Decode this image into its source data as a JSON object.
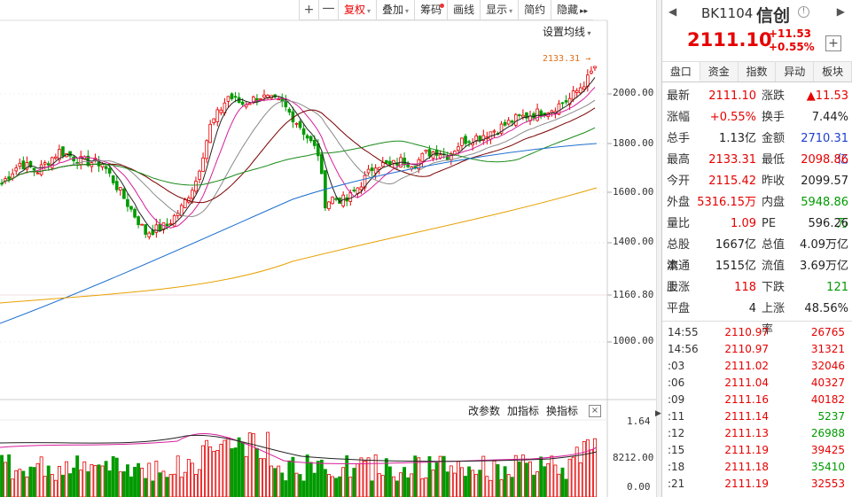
{
  "toolbar": {
    "zoom_in": "+",
    "zoom_out": "一",
    "fuquan": "复权",
    "overlay": "叠加",
    "chips": "筹码",
    "draw": "画线",
    "display": "显示",
    "simple": "简约",
    "hide": "隐藏",
    "more": "▸▸"
  },
  "chart_header": {
    "set_ma": "设置均线"
  },
  "price_axis": {
    "labels": [
      "2000.00",
      "1800.00",
      "1600.00",
      "1400.00",
      "1160.80",
      "1000.00"
    ],
    "high_marker": "2133.31"
  },
  "indicator": {
    "buttons": [
      "改参数",
      "加指标",
      "换指标"
    ],
    "close": "×",
    "axis_labels": [
      "1.64",
      "8212.00",
      "0.00"
    ]
  },
  "panel": {
    "prev": "◀",
    "next": "▶",
    "code": "BK1104",
    "name": "信创",
    "info": "!",
    "price": "2111.10",
    "change": "+11.53",
    "change_pct": "+0.55%",
    "add": "+",
    "tabs": [
      "盘口",
      "资金",
      "指数",
      "异动",
      "板块"
    ],
    "stats": [
      {
        "l1": "最新",
        "v1": "2111.10",
        "c1": "red",
        "l2": "涨跌",
        "v2": "▲11.53",
        "c2": "red"
      },
      {
        "l1": "涨幅",
        "v1": "+0.55%",
        "c1": "red",
        "l2": "换手",
        "v2": "7.44%",
        "c2": "dark"
      },
      {
        "l1": "总手",
        "v1": "1.13亿",
        "c1": "dark",
        "l2": "金额",
        "v2": "2710.31亿",
        "c2": "blue"
      },
      {
        "l1": "最高",
        "v1": "2133.31",
        "c1": "red",
        "l2": "最低",
        "v2": "2098.86",
        "c2": "red"
      },
      {
        "l1": "今开",
        "v1": "2115.42",
        "c1": "red",
        "l2": "昨收",
        "v2": "2099.57",
        "c2": "dark"
      },
      {
        "l1": "外盘",
        "v1": "5316.15万",
        "c1": "red",
        "l2": "内盘",
        "v2": "5948.86万",
        "c2": "green"
      },
      {
        "l1": "量比",
        "v1": "1.09",
        "c1": "red",
        "l2": "PE",
        "v2": "596.26",
        "c2": "dark"
      },
      {
        "l1": "总股本",
        "v1": "1667亿",
        "c1": "dark",
        "l2": "总值",
        "v2": "4.09万亿",
        "c2": "dark"
      },
      {
        "l1": "流通股",
        "v1": "1515亿",
        "c1": "dark",
        "l2": "流值",
        "v2": "3.69万亿",
        "c2": "dark"
      },
      {
        "l1": "上涨",
        "v1": "118",
        "c1": "red",
        "l2": "下跌",
        "v2": "121",
        "c2": "green"
      },
      {
        "l1": "平盘",
        "v1": "4",
        "c1": "dark",
        "l2": "上涨率",
        "v2": "48.56%",
        "c2": "dark"
      }
    ],
    "ticks": [
      {
        "t": "14:55",
        "p": "2110.97",
        "v": "26765",
        "c": "red"
      },
      {
        "t": "14:56",
        "p": "2110.97",
        "v": "31321",
        "c": "red"
      },
      {
        "t": ":03",
        "p": "2111.02",
        "v": "32046",
        "c": "red"
      },
      {
        "t": ":06",
        "p": "2111.04",
        "v": "40327",
        "c": "red"
      },
      {
        "t": ":09",
        "p": "2111.16",
        "v": "40182",
        "c": "red"
      },
      {
        "t": ":11",
        "p": "2111.14",
        "v": "5237",
        "c": "green"
      },
      {
        "t": ":12",
        "p": "2111.13",
        "v": "26988",
        "c": "green"
      },
      {
        "t": ":15",
        "p": "2111.19",
        "v": "39425",
        "c": "red"
      },
      {
        "t": ":18",
        "p": "2111.18",
        "v": "35410",
        "c": "green"
      },
      {
        "t": ":21",
        "p": "2111.19",
        "v": "32553",
        "c": "red"
      }
    ]
  },
  "colors": {
    "up": "#e60000",
    "down": "#009a00",
    "ma5": "#222222",
    "ma10": "#d81e9a",
    "ma20": "#8a8a8a",
    "ma30": "#7a0000",
    "ma60": "#1a8a1a",
    "ma120": "#1e6fd0",
    "ma250": "#e8a000"
  }
}
